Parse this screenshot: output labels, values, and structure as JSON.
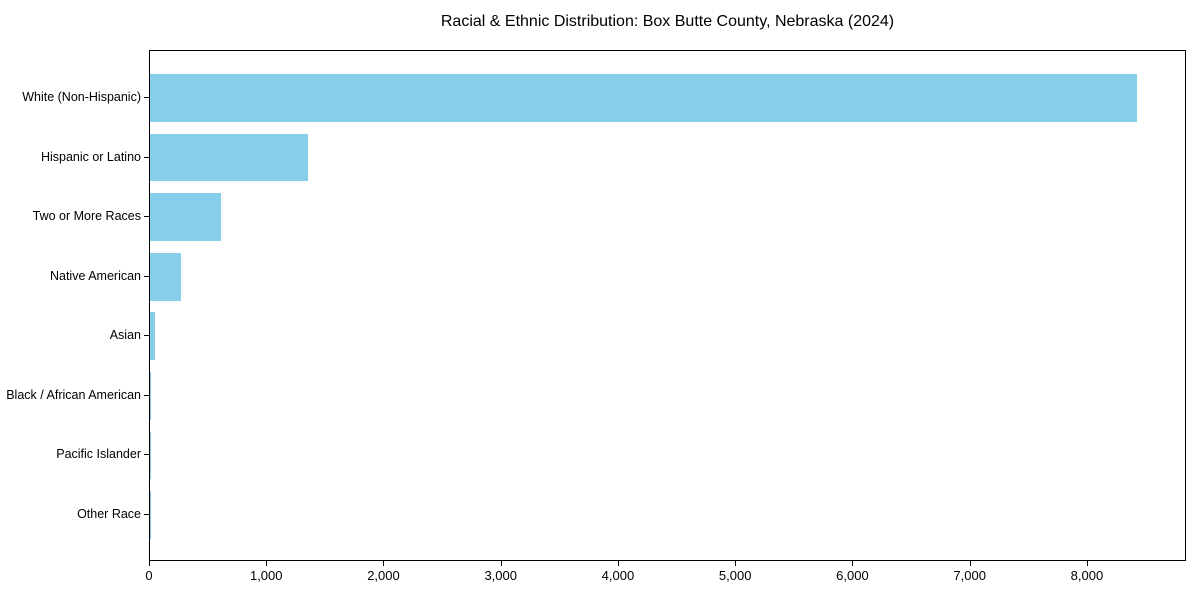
{
  "chart_data": {
    "type": "bar",
    "orientation": "horizontal",
    "title": "Racial & Ethnic Distribution: Box Butte County, Nebraska (2024)",
    "categories": [
      "White (Non-Hispanic)",
      "Hispanic or Latino",
      "Two or More Races",
      "Native American",
      "Asian",
      "Black / African American",
      "Pacific Islander",
      "Other Race"
    ],
    "values": [
      8420,
      1350,
      605,
      265,
      45,
      12,
      4,
      2
    ],
    "xlabel": "",
    "ylabel": "",
    "xlim": [
      0,
      8845
    ],
    "xticks": [
      0,
      1000,
      2000,
      3000,
      4000,
      5000,
      6000,
      7000,
      8000
    ],
    "xtick_labels": [
      "0",
      "1,000",
      "2,000",
      "3,000",
      "4,000",
      "5,000",
      "6,000",
      "7,000",
      "8,000"
    ],
    "bar_color": "#87CEEB",
    "axis_color": "#000000",
    "grid": false,
    "legend": "none",
    "background_color": "#ffffff"
  }
}
